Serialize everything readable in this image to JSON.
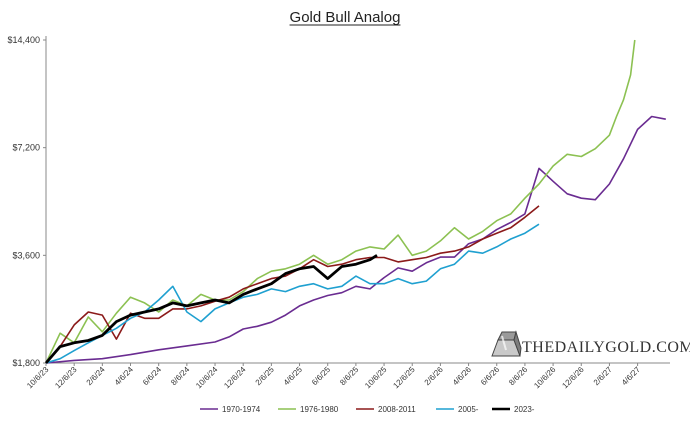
{
  "chart_data": {
    "type": "line",
    "title": "Gold Bull Analog",
    "yscale": "log",
    "ylim": [
      1800,
      14400
    ],
    "y_ticks": [
      "$1,800",
      "$3,600",
      "$7,200",
      "$14,400"
    ],
    "y_tick_values": [
      1800,
      3600,
      7200,
      14400
    ],
    "x_ticks": [
      "10/6/23",
      "12/6/23",
      "2/6/24",
      "4/6/24",
      "6/6/24",
      "8/6/24",
      "10/6/24",
      "12/6/24",
      "2/6/25",
      "4/6/25",
      "6/6/25",
      "8/6/25",
      "10/6/25",
      "12/6/25",
      "2/6/26",
      "4/6/26",
      "6/6/26",
      "8/6/26",
      "10/6/26",
      "12/6/26",
      "2/6/27",
      "4/6/27"
    ],
    "x_unit": "months since 10/6/23",
    "xlim": [
      0,
      44.3
    ],
    "series": [
      {
        "name": "1970-1974",
        "color": "#6a2c91",
        "x": [
          0,
          2,
          4,
          6,
          8,
          10,
          12,
          13,
          14,
          15,
          16,
          17,
          18,
          19,
          20,
          21,
          22,
          23,
          24,
          25,
          26,
          27,
          28,
          29,
          30,
          31,
          32,
          33,
          34,
          35,
          35.5,
          36,
          37,
          38,
          39,
          40,
          41,
          42,
          43,
          44
        ],
        "y": [
          1800,
          1830,
          1850,
          1900,
          1960,
          2010,
          2060,
          2130,
          2240,
          2280,
          2340,
          2450,
          2600,
          2700,
          2780,
          2830,
          2950,
          2900,
          3120,
          3320,
          3250,
          3430,
          3560,
          3560,
          3880,
          4000,
          4250,
          4450,
          4700,
          6300,
          6050,
          5800,
          5350,
          5200,
          5150,
          5700,
          6700,
          8100,
          8800,
          8650
        ]
      },
      {
        "name": "1976-1980",
        "color": "#8cc152",
        "x": [
          0,
          1,
          2,
          3,
          4,
          5,
          6,
          7,
          8,
          9,
          10,
          11,
          12,
          13,
          14,
          15,
          16,
          17,
          18,
          19,
          20,
          21,
          22,
          23,
          24,
          25,
          26,
          27,
          28,
          29,
          30,
          31,
          32,
          33,
          34,
          35,
          36,
          37,
          38,
          39,
          40,
          40.5,
          41,
          41.5,
          41.8
        ],
        "y": [
          1800,
          2180,
          2050,
          2420,
          2200,
          2480,
          2750,
          2650,
          2500,
          2700,
          2600,
          2800,
          2700,
          2700,
          2850,
          3100,
          3250,
          3300,
          3400,
          3600,
          3400,
          3500,
          3700,
          3800,
          3750,
          4100,
          3600,
          3700,
          3950,
          4300,
          4000,
          4200,
          4500,
          4700,
          5200,
          5700,
          6400,
          6900,
          6800,
          7150,
          7800,
          8800,
          9800,
          11500,
          14400
        ]
      },
      {
        "name": "2008-2011",
        "color": "#8b1a1a",
        "x": [
          0,
          1,
          2,
          3,
          4,
          5,
          6,
          7,
          8,
          9,
          10,
          11,
          12,
          13,
          14,
          15,
          16,
          17,
          18,
          19,
          20,
          21,
          22,
          23,
          24,
          25,
          26,
          27,
          28,
          29,
          30,
          31,
          32,
          33,
          34,
          35
        ],
        "y": [
          1800,
          2000,
          2300,
          2500,
          2450,
          2100,
          2480,
          2400,
          2400,
          2550,
          2550,
          2600,
          2680,
          2750,
          2900,
          3000,
          3100,
          3150,
          3300,
          3500,
          3350,
          3400,
          3500,
          3550,
          3550,
          3450,
          3500,
          3550,
          3650,
          3700,
          3800,
          4000,
          4150,
          4300,
          4600,
          4950
        ]
      },
      {
        "name": "2005-",
        "color": "#1fa0d0",
        "x": [
          0,
          1,
          2,
          3,
          4,
          5,
          6,
          7,
          8,
          9,
          10,
          11,
          12,
          13,
          14,
          15,
          16,
          17,
          18,
          19,
          20,
          21,
          22,
          23,
          24,
          25,
          26,
          27,
          28,
          29,
          30,
          31,
          32,
          33,
          34,
          35
        ],
        "y": [
          1800,
          1850,
          1950,
          2050,
          2150,
          2250,
          2400,
          2500,
          2700,
          2950,
          2500,
          2350,
          2550,
          2650,
          2750,
          2800,
          2900,
          2850,
          2950,
          3000,
          2900,
          2950,
          3150,
          3000,
          3000,
          3100,
          3000,
          3050,
          3300,
          3400,
          3700,
          3650,
          3800,
          4000,
          4150,
          4400
        ]
      },
      {
        "name": "2023-",
        "color": "#000000",
        "x": [
          0,
          1,
          2,
          3,
          4,
          5,
          6,
          7,
          8,
          9,
          10,
          11,
          12,
          13,
          14,
          15,
          16,
          17,
          18,
          19,
          20,
          21,
          22,
          23,
          23.5
        ],
        "y": [
          1800,
          2000,
          2050,
          2080,
          2150,
          2350,
          2450,
          2500,
          2550,
          2650,
          2600,
          2650,
          2700,
          2650,
          2800,
          2900,
          3000,
          3200,
          3300,
          3350,
          3100,
          3350,
          3400,
          3500,
          3600
        ]
      }
    ]
  },
  "brand": {
    "name": "THEDAILYGOLD.COM"
  }
}
